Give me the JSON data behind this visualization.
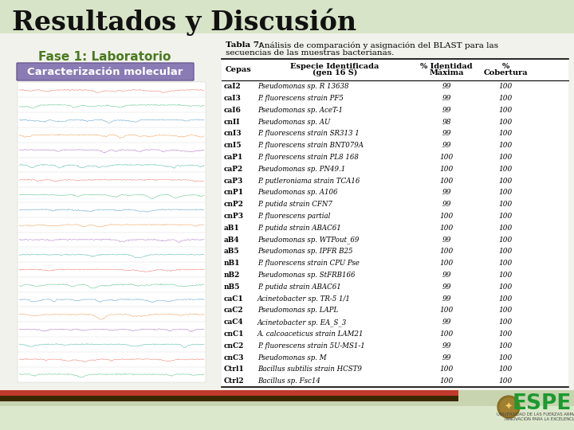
{
  "title": "Resultados y Discusión",
  "phase_label": "Fase 1: Laboratorio",
  "box_label": "Caracterización molecular",
  "table_title_bold": "Tabla 7:",
  "table_title_rest": " Análisis de comparación y asignación del BLAST para las secuencias de las muestras bacterianas.",
  "col_headers_line1": [
    "Cepas",
    "Especie Identificada",
    "% Identidad",
    "%"
  ],
  "col_headers_line2": [
    "",
    "(gen 16 S)",
    "Máxima",
    "Cobertura"
  ],
  "rows": [
    [
      "caI2",
      "Pseudomonas sp. R 13638",
      "99",
      "100"
    ],
    [
      "caI3",
      "P. fluorescens strain PF5",
      "99",
      "100"
    ],
    [
      "caI6",
      "Pseudomonas sp. AceT-1",
      "99",
      "100"
    ],
    [
      "cnII",
      "Pseudomonas sp. AU",
      "98",
      "100"
    ],
    [
      "cnI3",
      "P. fluorescens strain SR313 1",
      "99",
      "100"
    ],
    [
      "cnI5",
      "P. fluorescens strain BNT079A",
      "99",
      "100"
    ],
    [
      "caP1",
      "P. fluorescens strain PL8 168",
      "100",
      "100"
    ],
    [
      "caP2",
      "Pseudomonas sp. PN49.1",
      "100",
      "100"
    ],
    [
      "caP3",
      "P. putleroniama strain TCA16",
      "100",
      "100"
    ],
    [
      "cnP1",
      "Pseudomonas sp. A106",
      "99",
      "100"
    ],
    [
      "cnP2",
      "P. putida strain CFN7",
      "99",
      "100"
    ],
    [
      "cnP3",
      "P. fluorescens partial",
      "100",
      "100"
    ],
    [
      "aB1",
      "P. putida strain ABAC61",
      "100",
      "100"
    ],
    [
      "aB4",
      "Pseudomonas sp. WTPout_69",
      "99",
      "100"
    ],
    [
      "aB5",
      "Pseudomonas sp. IPFR B25",
      "100",
      "100"
    ],
    [
      "nB1",
      "P. fluorescens strain CPU Pse",
      "100",
      "100"
    ],
    [
      "nB2",
      "Pseudomonas sp. StFRB166",
      "99",
      "100"
    ],
    [
      "nB5",
      "P. putida strain ABAC61",
      "99",
      "100"
    ],
    [
      "caC1",
      "Acinetobacter sp. TR-5 1/1",
      "99",
      "100"
    ],
    [
      "caC2",
      "Pseudomonas sp. LAPL",
      "100",
      "100"
    ],
    [
      "caC4",
      "Acinetobacter sp. EA_S_3",
      "99",
      "100"
    ],
    [
      "cnC1",
      "A. calcoaceticus strain LAM21",
      "100",
      "100"
    ],
    [
      "cnC2",
      "P. fluorescens strain 5U-MS1-1",
      "99",
      "100"
    ],
    [
      "cnC3",
      "Pseudomonas sp. M",
      "99",
      "100"
    ],
    [
      "Ctrl1",
      "Bacillus subtilis strain HCST9",
      "100",
      "100"
    ],
    [
      "Ctrl2",
      "Bacillus sp. Fsc14",
      "100",
      "100"
    ]
  ],
  "bg_top_color": "#f0f0e8",
  "bg_bottom_color": "#c8d4b0",
  "title_color": "#111111",
  "phase_color": "#4a7a20",
  "box_bg": "#8b7bb5",
  "box_text_color": "#ffffff",
  "stripe_red": "#c0392b",
  "stripe_dark": "#3a2800",
  "espe_green": "#2ecc71",
  "espe_text": "#1a9a4a"
}
